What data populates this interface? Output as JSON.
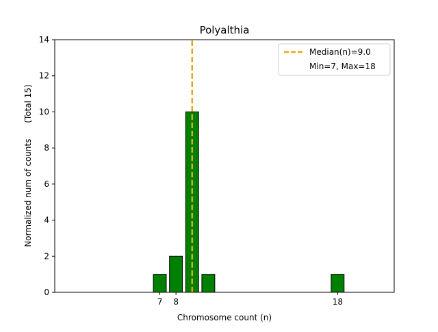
{
  "chart_data": {
    "type": "bar",
    "title": "Polyalthia",
    "xlabel": "Chromosome count (n)",
    "ylabel": "Normalized num of counts      (Total 15)",
    "x": [
      7,
      8,
      9,
      10,
      18
    ],
    "values": [
      1,
      2,
      10,
      1,
      1
    ],
    "xlim": [
      0.5,
      21.5
    ],
    "ylim": [
      0,
      14
    ],
    "xticks": [
      7,
      8,
      18
    ],
    "yticks": [
      0,
      2,
      4,
      6,
      8,
      10,
      12,
      14
    ],
    "median": 9.0,
    "bar_color": "#008000",
    "median_color": "#e6a817",
    "legend": {
      "position": "top-right",
      "entries": [
        "Median(n)=9.0",
        "Min=7, Max=18"
      ]
    }
  }
}
